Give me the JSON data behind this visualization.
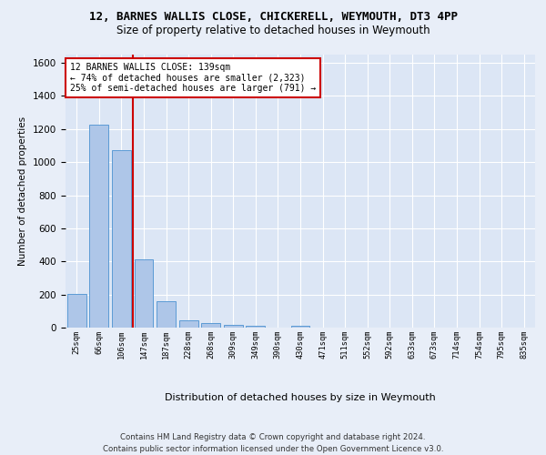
{
  "title1": "12, BARNES WALLIS CLOSE, CHICKERELL, WEYMOUTH, DT3 4PP",
  "title2": "Size of property relative to detached houses in Weymouth",
  "xlabel": "Distribution of detached houses by size in Weymouth",
  "ylabel": "Number of detached properties",
  "categories": [
    "25sqm",
    "66sqm",
    "106sqm",
    "147sqm",
    "187sqm",
    "228sqm",
    "268sqm",
    "309sqm",
    "349sqm",
    "390sqm",
    "430sqm",
    "471sqm",
    "511sqm",
    "552sqm",
    "592sqm",
    "633sqm",
    "673sqm",
    "714sqm",
    "754sqm",
    "795sqm",
    "835sqm"
  ],
  "values": [
    203,
    1225,
    1075,
    410,
    162,
    45,
    27,
    18,
    13,
    0,
    13,
    0,
    0,
    0,
    0,
    0,
    0,
    0,
    0,
    0,
    0
  ],
  "bar_color": "#aec6e8",
  "bar_edgecolor": "#5b9bd5",
  "vline_x": 2.5,
  "vline_color": "#cc0000",
  "annotation_text": "12 BARNES WALLIS CLOSE: 139sqm\n← 74% of detached houses are smaller (2,323)\n25% of semi-detached houses are larger (791) →",
  "annotation_box_color": "#ffffff",
  "annotation_box_edgecolor": "#cc0000",
  "footer": "Contains HM Land Registry data © Crown copyright and database right 2024.\nContains public sector information licensed under the Open Government Licence v3.0.",
  "ylim": [
    0,
    1650
  ],
  "background_color": "#e8eef8",
  "plot_background": "#dce6f5",
  "yticks": [
    0,
    200,
    400,
    600,
    800,
    1000,
    1200,
    1400,
    1600
  ]
}
